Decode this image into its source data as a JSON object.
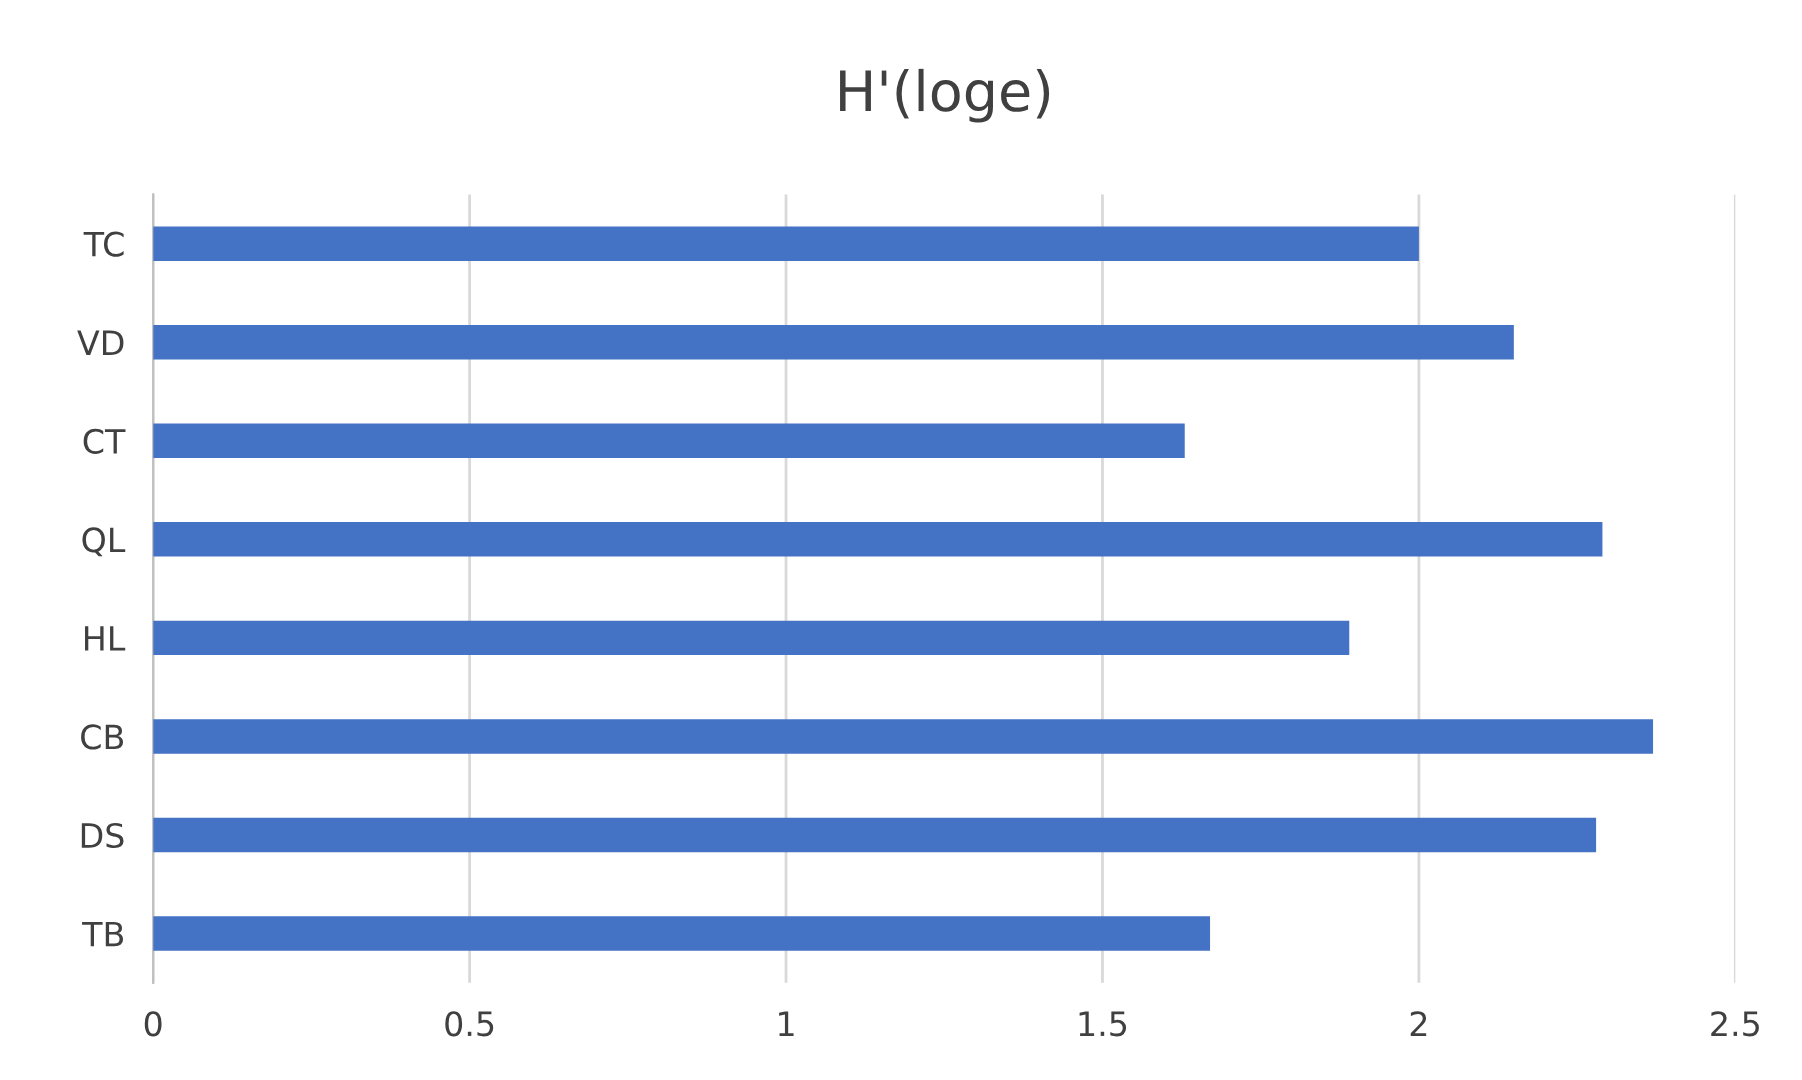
{
  "chart_data": {
    "type": "bar",
    "orientation": "horizontal",
    "title": "H'(loge)",
    "categories": [
      "TC",
      "VD",
      "CT",
      "QL",
      "HL",
      "CB",
      "DS",
      "TB"
    ],
    "values": [
      2.0,
      2.15,
      1.63,
      2.29,
      1.89,
      2.37,
      2.28,
      1.67
    ],
    "color": "#4472c4",
    "xlim": [
      0,
      2.5
    ],
    "xticks": [
      0,
      0.5,
      1,
      1.5,
      2,
      2.5
    ],
    "grid": "x",
    "legend": false
  }
}
